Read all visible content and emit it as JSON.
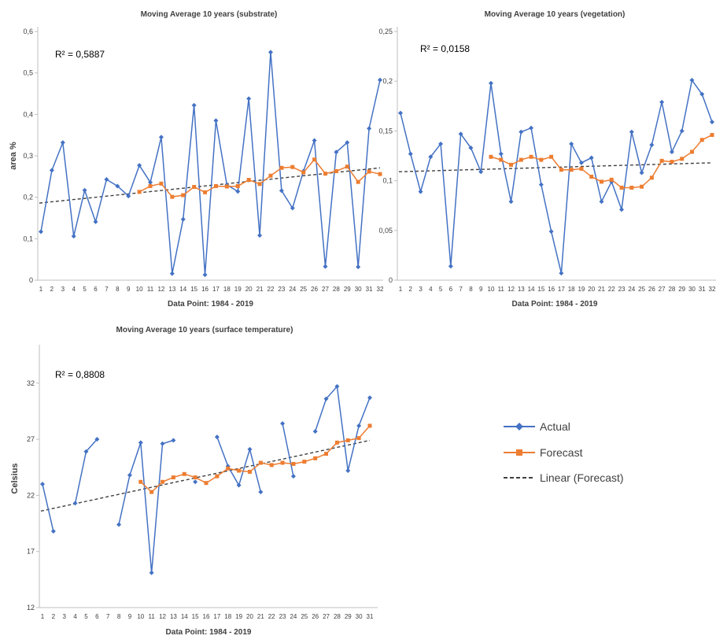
{
  "legend": {
    "actual_label": "Actual",
    "forecast_label": "Forecast",
    "linear_label": "Linear (Forecast)"
  },
  "colors": {
    "actual": "#4472C4",
    "forecast": "#ED7D31",
    "linear": "#404040",
    "axis": "#bfbfbf"
  },
  "chart_data": [
    {
      "type": "line",
      "title": "Moving Average 10 years (substrate)",
      "xlabel": "Data Point: 1984 - 2019",
      "ylabel": "area %",
      "r2": "R² = 0,5887",
      "x": [
        1,
        2,
        3,
        4,
        5,
        6,
        7,
        8,
        9,
        10,
        11,
        12,
        13,
        14,
        15,
        16,
        17,
        18,
        19,
        20,
        21,
        22,
        23,
        24,
        25,
        26,
        27,
        28,
        29,
        30,
        31,
        32
      ],
      "ylim": [
        0,
        0.6
      ],
      "yticks": [
        "0",
        "0,1",
        "0,2",
        "0,3",
        "0,4",
        "0,5",
        "0,6"
      ],
      "series": [
        {
          "name": "Actual",
          "values": [
            0.117,
            0.265,
            0.332,
            0.106,
            0.217,
            0.141,
            0.243,
            0.227,
            0.203,
            0.277,
            0.236,
            0.345,
            0.016,
            0.147,
            0.422,
            0.013,
            0.385,
            0.23,
            0.214,
            0.438,
            0.108,
            0.55,
            0.216,
            0.174,
            0.263,
            0.337,
            0.033,
            0.309,
            0.332,
            0.032,
            0.366,
            0.483
          ]
        },
        {
          "name": "Forecast",
          "values": [
            null,
            null,
            null,
            null,
            null,
            null,
            null,
            null,
            null,
            0.213,
            0.227,
            0.233,
            0.201,
            0.205,
            0.225,
            0.212,
            0.227,
            0.226,
            0.227,
            0.242,
            0.232,
            0.252,
            0.271,
            0.273,
            0.26,
            0.291,
            0.257,
            0.263,
            0.274,
            0.237,
            0.262,
            0.256
          ]
        }
      ],
      "trendline": {
        "name": "Linear (Forecast)",
        "start": 0.186,
        "end": 0.271
      }
    },
    {
      "type": "line",
      "title": "Moving Average 10 years (vegetation)",
      "xlabel": "Data Point: 1984 - 2019",
      "ylabel": "",
      "r2": "R² = 0,0158",
      "x": [
        1,
        2,
        3,
        4,
        5,
        6,
        7,
        8,
        9,
        10,
        11,
        12,
        13,
        14,
        15,
        16,
        17,
        18,
        19,
        20,
        21,
        22,
        23,
        24,
        25,
        26,
        27,
        28,
        29,
        30,
        31,
        32
      ],
      "ylim": [
        0,
        0.25
      ],
      "yticks": [
        "0",
        "0,05",
        "0,1",
        "0,15",
        "0,2",
        "0,25"
      ],
      "series": [
        {
          "name": "Actual",
          "values": [
            0.168,
            0.127,
            0.089,
            0.124,
            0.137,
            0.014,
            0.147,
            0.133,
            0.109,
            0.198,
            0.127,
            0.079,
            0.149,
            0.153,
            0.096,
            0.049,
            0.007,
            0.137,
            0.118,
            0.123,
            0.079,
            0.099,
            0.071,
            0.149,
            0.108,
            0.136,
            0.179,
            0.129,
            0.15,
            0.201,
            0.187,
            0.159
          ]
        },
        {
          "name": "Forecast",
          "values": [
            null,
            null,
            null,
            null,
            null,
            null,
            null,
            null,
            null,
            0.124,
            0.121,
            0.116,
            0.121,
            0.124,
            0.121,
            0.124,
            0.111,
            0.111,
            0.112,
            0.104,
            0.099,
            0.101,
            0.093,
            0.093,
            0.094,
            0.103,
            0.12,
            0.119,
            0.122,
            0.129,
            0.141,
            0.146
          ]
        }
      ],
      "trendline": {
        "name": "Linear (Forecast)",
        "start": 0.109,
        "end": 0.118
      }
    },
    {
      "type": "line",
      "title": "Moving Average 10 years (surface temperature)",
      "xlabel": "Data Point: 1984 - 2019",
      "ylabel": "Celsius",
      "r2": "R² = 0,8808",
      "x": [
        1,
        2,
        3,
        4,
        5,
        6,
        7,
        8,
        9,
        10,
        11,
        12,
        13,
        14,
        15,
        16,
        17,
        18,
        19,
        20,
        21,
        22,
        23,
        24,
        25,
        26,
        27,
        28,
        29,
        30,
        31
      ],
      "ylim": [
        12,
        35
      ],
      "yticks": [
        "12",
        "17",
        "22",
        "27",
        "32"
      ],
      "ytick_values": [
        12,
        17,
        22,
        27,
        32
      ],
      "series": [
        {
          "name": "Actual",
          "values": [
            23.0,
            18.8,
            null,
            21.3,
            25.9,
            27.0,
            null,
            19.4,
            23.8,
            26.7,
            15.1,
            26.6,
            26.9,
            null,
            23.2,
            null,
            27.2,
            24.6,
            22.9,
            26.1,
            22.3,
            null,
            28.4,
            23.7,
            null,
            27.7,
            30.6,
            31.7,
            24.2,
            28.2,
            30.7
          ]
        },
        {
          "name": "Forecast",
          "values": [
            null,
            null,
            null,
            null,
            null,
            null,
            null,
            null,
            null,
            23.2,
            22.3,
            23.2,
            23.6,
            23.9,
            23.6,
            23.1,
            23.7,
            24.4,
            24.2,
            24.1,
            24.9,
            24.7,
            24.9,
            24.8,
            25.0,
            25.3,
            25.7,
            26.7,
            26.9,
            27.1,
            28.2
          ]
        }
      ],
      "trendline": {
        "name": "Linear (Forecast)",
        "start": 20.6,
        "end": 26.9
      }
    }
  ]
}
